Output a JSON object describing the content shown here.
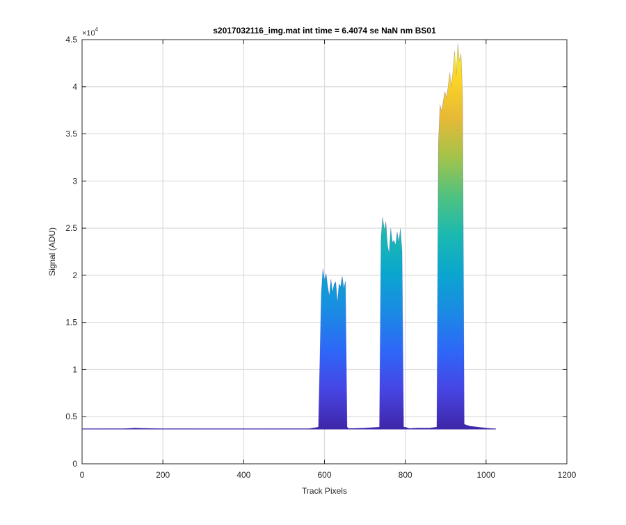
{
  "chart_data": {
    "type": "area",
    "title": "s2017032116_img.mat int time = 6.4074 se  NaN nm BS01",
    "xlabel": "Track Pixels",
    "ylabel": "Signal (ADU)",
    "xlim": [
      0,
      1200
    ],
    "ylim": [
      0,
      45000
    ],
    "x_ticks": [
      0,
      200,
      400,
      600,
      800,
      1000,
      1200
    ],
    "y_ticks": [
      0,
      5000,
      10000,
      15000,
      20000,
      25000,
      30000,
      35000,
      40000,
      45000
    ],
    "x_tick_labels": [
      "0",
      "200",
      "400",
      "600",
      "800",
      "1000",
      "1200"
    ],
    "y_tick_labels": [
      "0",
      "0.5",
      "1",
      "1.5",
      "2",
      "2.5",
      "3",
      "3.5",
      "4",
      "4.5"
    ],
    "y_exponent_label": "×10",
    "y_exponent_power": "4",
    "grid": true,
    "colormap": [
      "#3e26a8",
      "#4745e3",
      "#2e67f8",
      "#1b8ae4",
      "#0aa6ce",
      "#1bb9b0",
      "#51c27f",
      "#a5c34a",
      "#e7b936",
      "#fbd526",
      "#f9fb0e"
    ],
    "baseline": 3700,
    "series": [
      {
        "x": [
          1,
          100,
          130,
          200,
          400,
          560,
          585,
          592,
          596,
          600,
          604,
          608,
          612,
          616,
          620,
          624,
          628,
          632,
          636,
          640,
          644,
          648,
          652,
          656,
          660,
          700,
          736,
          740,
          744,
          748,
          752,
          756,
          760,
          764,
          768,
          772,
          776,
          780,
          784,
          788,
          792,
          796,
          800,
          810,
          830,
          860,
          878,
          882,
          886,
          890,
          894,
          898,
          902,
          906,
          910,
          914,
          918,
          922,
          926,
          930,
          934,
          938,
          942,
          946,
          960,
          1000,
          1024
        ],
        "y": [
          3700,
          3720,
          3800,
          3720,
          3700,
          3720,
          3900,
          18000,
          20700,
          19500,
          20200,
          18800,
          17800,
          19600,
          18200,
          19100,
          19300,
          17100,
          19100,
          18800,
          19900,
          18600,
          19400,
          3900,
          3750,
          3800,
          3900,
          24000,
          26200,
          24800,
          25700,
          23200,
          22300,
          25000,
          23500,
          23700,
          23200,
          24600,
          23500,
          25000,
          22500,
          3900,
          3900,
          3750,
          3800,
          3800,
          3900,
          34000,
          38100,
          37400,
          38500,
          39500,
          38800,
          40000,
          41500,
          40000,
          41700,
          43800,
          41200,
          44600,
          42700,
          43500,
          39000,
          4200,
          4000,
          3800,
          3700
        ]
      }
    ]
  }
}
